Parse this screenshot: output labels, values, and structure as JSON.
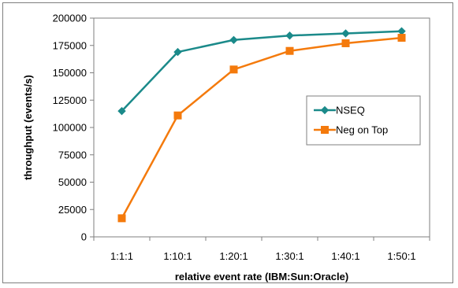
{
  "chart_data": {
    "type": "line",
    "categories": [
      "1:1:1",
      "1:10:1",
      "1:20:1",
      "1:30:1",
      "1:40:1",
      "1:50:1"
    ],
    "series": [
      {
        "name": "NSEQ",
        "values": [
          115000,
          169000,
          180000,
          184000,
          186000,
          188000
        ],
        "color": "#1b8a8a",
        "marker": "diamond"
      },
      {
        "name": "Neg on Top",
        "values": [
          17000,
          111000,
          153000,
          170000,
          177000,
          182000
        ],
        "color": "#f47a0c",
        "marker": "square"
      }
    ],
    "xlabel": "relative event rate (IBM:Sun:Oracle)",
    "ylabel": "throughput (events/s)",
    "ylim": [
      0,
      200000
    ],
    "yticks": [
      0,
      25000,
      50000,
      75000,
      100000,
      125000,
      150000,
      175000,
      200000
    ],
    "legend_position": "right",
    "grid": false
  }
}
